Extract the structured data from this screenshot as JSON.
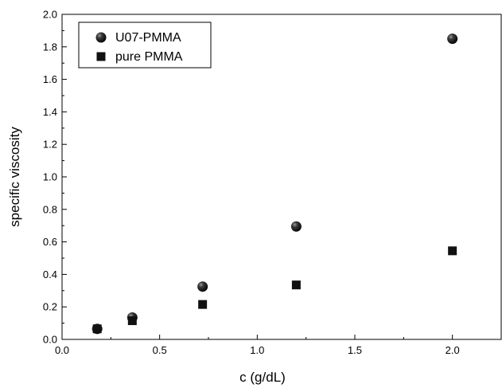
{
  "chart_data": {
    "type": "scatter",
    "xlabel": "c (g/dL)",
    "ylabel": "specific viscosity",
    "xlim": [
      0.0,
      2.25
    ],
    "ylim": [
      0.0,
      2.0
    ],
    "x_ticks": [
      "0.0",
      "0.5",
      "1.0",
      "1.5",
      "2.0"
    ],
    "y_ticks": [
      "0.0",
      "0.2",
      "0.4",
      "0.6",
      "0.8",
      "1.0",
      "1.2",
      "1.4",
      "1.6",
      "1.8",
      "2.0"
    ],
    "grid": false,
    "legend_position": "top-left",
    "series": [
      {
        "name": "U07-PMMA",
        "marker": "circle",
        "color": "#111111",
        "points": [
          {
            "x": 0.18,
            "y": 0.065
          },
          {
            "x": 0.36,
            "y": 0.135
          },
          {
            "x": 0.72,
            "y": 0.325
          },
          {
            "x": 1.2,
            "y": 0.695
          },
          {
            "x": 2.0,
            "y": 1.85
          }
        ]
      },
      {
        "name": "pure PMMA",
        "marker": "square",
        "color": "#111111",
        "points": [
          {
            "x": 0.18,
            "y": 0.065
          },
          {
            "x": 0.36,
            "y": 0.115
          },
          {
            "x": 0.72,
            "y": 0.215
          },
          {
            "x": 1.2,
            "y": 0.335
          },
          {
            "x": 2.0,
            "y": 0.545
          }
        ]
      }
    ]
  }
}
